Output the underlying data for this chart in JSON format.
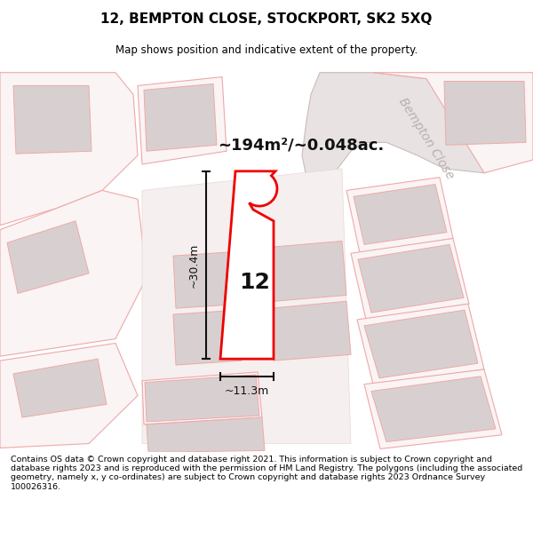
{
  "title_line1": "12, BEMPTON CLOSE, STOCKPORT, SK2 5XQ",
  "title_line2": "Map shows position and indicative extent of the property.",
  "footer_text": "Contains OS data © Crown copyright and database right 2021. This information is subject to Crown copyright and database rights 2023 and is reproduced with the permission of HM Land Registry. The polygons (including the associated geometry, namely x, y co-ordinates) are subject to Crown copyright and database rights 2023 Ordnance Survey 100026316.",
  "area_label": "~194m²/~0.048ac.",
  "height_label": "~30.4m",
  "width_label": "~11.3m",
  "property_number": "12",
  "street_label": "Bempton Close",
  "bg_color": "#ffffff",
  "map_bg_color": "#faf6f6",
  "plot_outline_color": "#ee0000",
  "plot_fill_color": "#ffffff",
  "other_outline_color": "#f0a8a8",
  "other_fill_color": "#faf4f4",
  "building_fill_color": "#d8d0d0",
  "road_fill_color": "#e8e0e0",
  "road_label_color": "#b8b0b0",
  "dim_line_color": "#111111",
  "text_color": "#111111"
}
